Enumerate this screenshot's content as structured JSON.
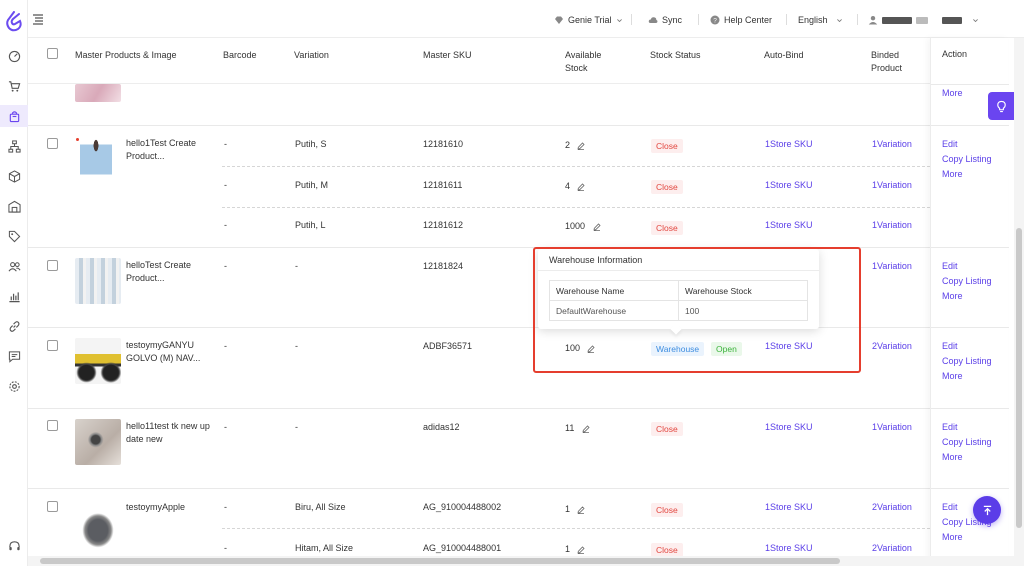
{
  "colors": {
    "accent": "#5a3ee8",
    "close_red": "#e2463f",
    "open_green": "#3bb33b",
    "warehouse_blue": "#3d8de0",
    "highlight_box": "#e53e2e"
  },
  "header": {
    "genie_trial": "Genie Trial",
    "sync": "Sync",
    "help_center": "Help Center",
    "language": "English"
  },
  "table": {
    "columns": {
      "master_products": "Master Products & Image",
      "barcode": "Barcode",
      "variation": "Variation",
      "master_sku": "Master SKU",
      "available_stock": "Available Stock",
      "stock_status": "Stock Status",
      "auto_bind": "Auto-Bind",
      "binded_product": "Binded Product",
      "action": "Action"
    },
    "rows": [
      {
        "name": "hello1Test Create Product...",
        "variants": [
          {
            "barcode": "-",
            "variation": "Putih, S",
            "sku": "12181610",
            "stock": "2",
            "status": "Close",
            "auto_bind": "1Store SKU",
            "binded": "1Variation"
          },
          {
            "barcode": "-",
            "variation": "Putih, M",
            "sku": "12181611",
            "stock": "4",
            "status": "Close",
            "auto_bind": "1Store SKU",
            "binded": "1Variation"
          },
          {
            "barcode": "-",
            "variation": "Putih, L",
            "sku": "12181612",
            "stock": "1000",
            "status": "Close",
            "auto_bind": "1Store SKU",
            "binded": "1Variation"
          }
        ]
      },
      {
        "name": "helloTest Create Product...",
        "variants": [
          {
            "barcode": "-",
            "variation": "-",
            "sku": "12181824",
            "binded": "1Variation"
          }
        ]
      },
      {
        "name": "testoymyGANYU GOLVO (M) NAV...",
        "variants": [
          {
            "barcode": "-",
            "variation": "-",
            "sku": "ADBF36571",
            "stock": "100",
            "status_warehouse": "Warehouse",
            "status_open": "Open",
            "auto_bind": "1Store SKU",
            "binded": "2Variation"
          }
        ]
      },
      {
        "name": "hello11test tk new up date new",
        "variants": [
          {
            "barcode": "-",
            "variation": "-",
            "sku": "adidas12",
            "stock": "11",
            "status": "Close",
            "auto_bind": "1Store SKU",
            "binded": "1Variation"
          }
        ]
      },
      {
        "name": "testoymyApple",
        "variants": [
          {
            "barcode": "-",
            "variation": "Biru, All Size",
            "sku": "AG_910004488002",
            "stock": "1",
            "status": "Close",
            "auto_bind": "1Store SKU",
            "binded": "2Variation"
          },
          {
            "barcode": "-",
            "variation": "Hitam, All Size",
            "sku": "AG_910004488001",
            "stock": "1",
            "status": "Close",
            "auto_bind": "1Store SKU",
            "binded": "2Variation"
          }
        ]
      }
    ],
    "actions": {
      "edit": "Edit",
      "copy": "Copy Listing",
      "more": "More"
    }
  },
  "popover": {
    "title": "Warehouse Information",
    "col_name": "Warehouse Name",
    "col_stock": "Warehouse Stock",
    "warehouse_name": "DefaultWarehouse",
    "warehouse_stock": "100"
  }
}
